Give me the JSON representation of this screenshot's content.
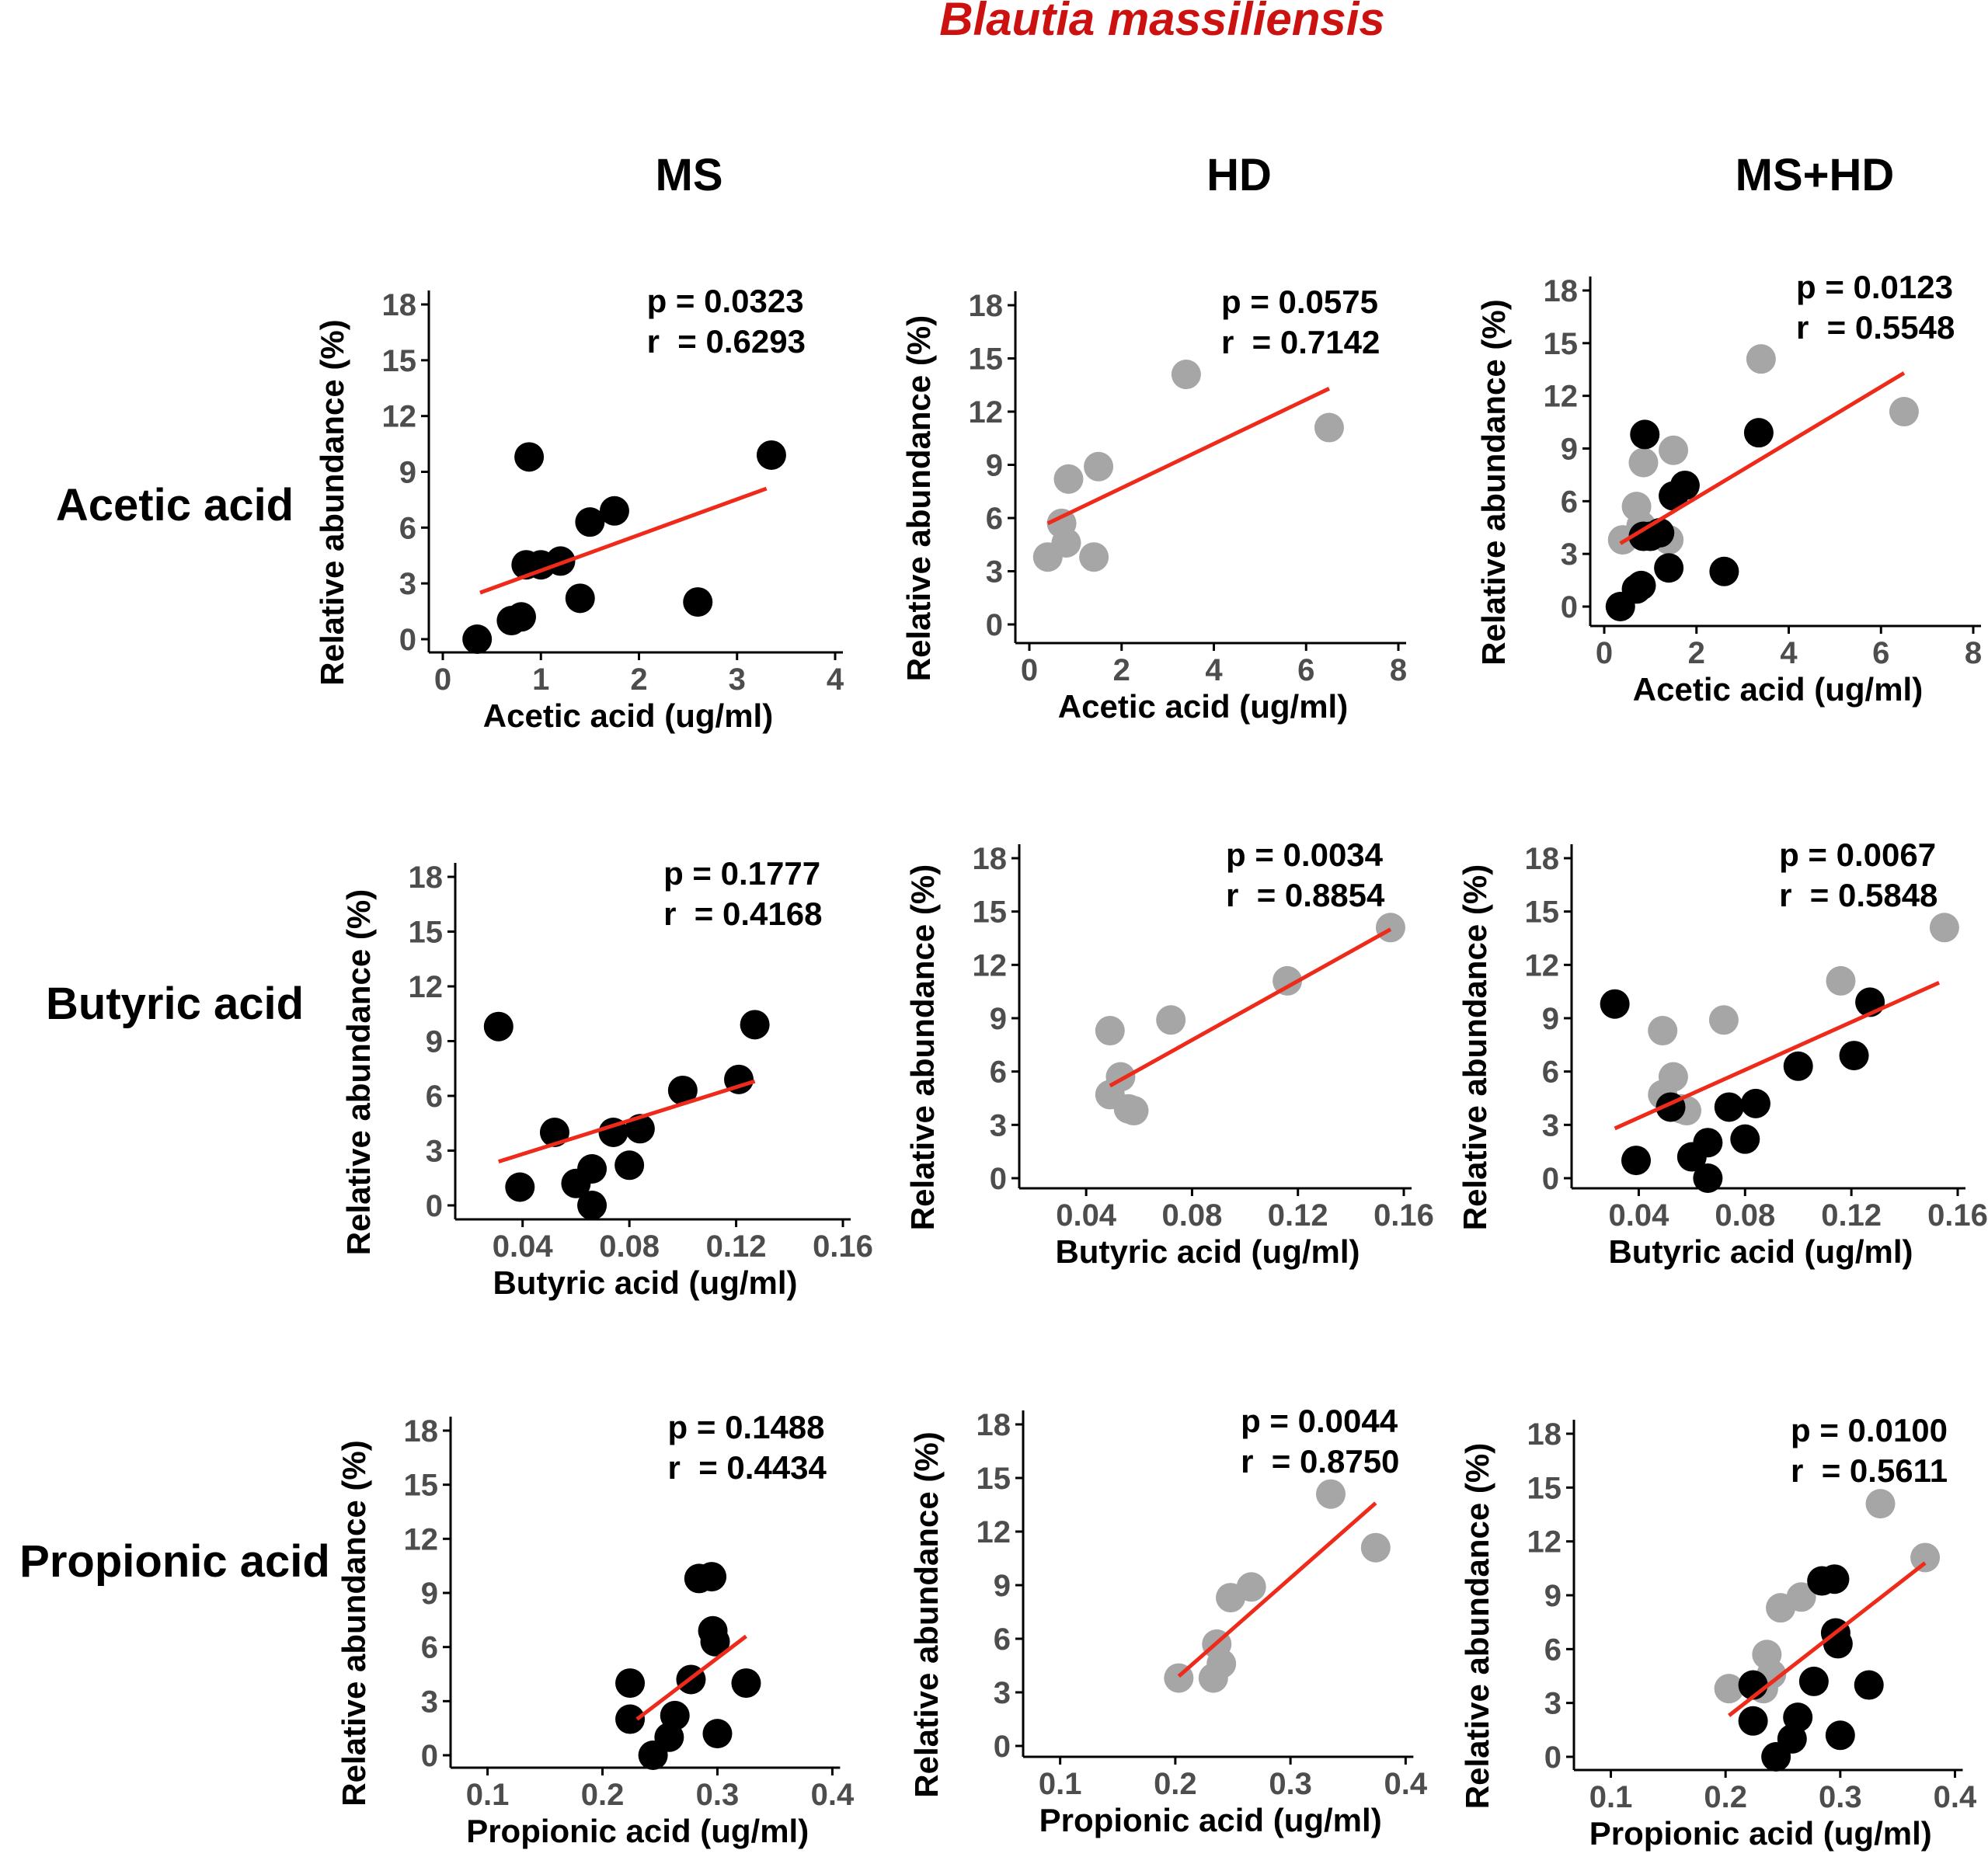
{
  "figure": {
    "title": "Blautia massiliensis",
    "column_headers": [
      "MS",
      "HD",
      "MS+HD"
    ],
    "row_labels": [
      "Acetic acid",
      "Butyric acid",
      "Propionic acid"
    ],
    "colors": {
      "title": "#cc1111",
      "ms_points": "#000000",
      "hd_points": "#a6a6a6",
      "fit_line": "#ee2a1a",
      "axis": "#000000",
      "tick_text": "#4d4d4d"
    }
  },
  "chart_data": [
    {
      "id": "acetic-ms",
      "type": "scatter",
      "xlabel": "Acetic acid (ug/ml)",
      "ylabel": "Relative abundance (%)",
      "xlim": [
        0,
        4
      ],
      "xticks": [
        0,
        1,
        2,
        3,
        4
      ],
      "xtick_labels": [
        "0",
        "1",
        "2",
        "3",
        "4"
      ],
      "ylim": [
        0,
        18
      ],
      "yticks": [
        0,
        3,
        6,
        9,
        12,
        15,
        18
      ],
      "ytick_labels": [
        "0",
        "3",
        "6",
        "9",
        "12",
        "15",
        "18"
      ],
      "p_text": "p = 0.0323",
      "r_text": "r  = 0.6293",
      "series": [
        {
          "name": "MS",
          "color": "#000000",
          "x": [
            0.35,
            0.7,
            0.8,
            0.85,
            0.88,
            1.0,
            1.2,
            1.4,
            1.5,
            1.75,
            2.6,
            3.35
          ],
          "y": [
            0.0,
            1.0,
            1.2,
            4.0,
            9.8,
            4.0,
            4.2,
            2.2,
            6.3,
            6.9,
            2.0,
            9.9
          ]
        }
      ],
      "fit": {
        "x": [
          0.38,
          3.3
        ],
        "y": [
          2.5,
          8.1
        ]
      }
    },
    {
      "id": "acetic-hd",
      "type": "scatter",
      "xlabel": "Acetic acid (ug/ml)",
      "ylabel": "Relative abundance (%)",
      "xlim": [
        0,
        8
      ],
      "xticks": [
        0,
        2,
        4,
        6,
        8
      ],
      "xtick_labels": [
        "0",
        "2",
        "4",
        "6",
        "8"
      ],
      "ylim": [
        0,
        18
      ],
      "yticks": [
        0,
        3,
        6,
        9,
        12,
        15,
        18
      ],
      "ytick_labels": [
        "0",
        "3",
        "6",
        "9",
        "12",
        "15",
        "18"
      ],
      "p_text": "p = 0.0575",
      "r_text": "r  = 0.7142",
      "series": [
        {
          "name": "HD",
          "color": "#a6a6a6",
          "x": [
            0.4,
            0.7,
            0.8,
            0.85,
            1.4,
            1.5,
            3.4,
            6.5
          ],
          "y": [
            3.8,
            5.7,
            4.6,
            8.2,
            3.8,
            8.9,
            14.1,
            11.1
          ]
        }
      ],
      "fit": {
        "x": [
          0.4,
          6.5
        ],
        "y": [
          5.7,
          13.3
        ]
      }
    },
    {
      "id": "acetic-mshd",
      "type": "scatter",
      "xlabel": "Acetic acid (ug/ml)",
      "ylabel": "Relative abundance (%)",
      "xlim": [
        0,
        8
      ],
      "xticks": [
        0,
        2,
        4,
        6,
        8
      ],
      "xtick_labels": [
        "0",
        "2",
        "4",
        "6",
        "8"
      ],
      "ylim": [
        0,
        18
      ],
      "yticks": [
        0,
        3,
        6,
        9,
        12,
        15,
        18
      ],
      "ytick_labels": [
        "0",
        "3",
        "6",
        "9",
        "12",
        "15",
        "18"
      ],
      "p_text": "p = 0.0123",
      "r_text": "r  = 0.5548",
      "series": [
        {
          "name": "HD",
          "color": "#a6a6a6",
          "x": [
            0.4,
            0.7,
            0.8,
            0.85,
            1.4,
            1.5,
            3.4,
            6.5
          ],
          "y": [
            3.8,
            5.7,
            4.6,
            8.2,
            3.8,
            8.9,
            14.1,
            11.1
          ]
        },
        {
          "name": "MS",
          "color": "#000000",
          "x": [
            0.35,
            0.7,
            0.8,
            0.85,
            0.88,
            1.0,
            1.2,
            1.4,
            1.5,
            1.75,
            2.6,
            3.35
          ],
          "y": [
            0.0,
            1.0,
            1.2,
            4.0,
            9.8,
            4.0,
            4.2,
            2.2,
            6.3,
            6.9,
            2.0,
            9.9
          ]
        }
      ],
      "fit": {
        "x": [
          0.35,
          6.5
        ],
        "y": [
          3.6,
          13.3
        ]
      }
    },
    {
      "id": "butyric-ms",
      "type": "scatter",
      "xlabel": "Butyric acid (ug/ml)",
      "ylabel": "Relative abundance (%)",
      "xlim": [
        0.02,
        0.16
      ],
      "xticks": [
        0.04,
        0.08,
        0.12,
        0.16
      ],
      "xtick_labels": [
        "0.04",
        "0.08",
        "0.12",
        "0.16"
      ],
      "ylim": [
        0,
        18
      ],
      "yticks": [
        0,
        3,
        6,
        9,
        12,
        15,
        18
      ],
      "ytick_labels": [
        "0",
        "3",
        "6",
        "9",
        "12",
        "15",
        "18"
      ],
      "p_text": "p = 0.1777",
      "r_text": "r  = 0.4168",
      "series": [
        {
          "name": "MS",
          "color": "#000000",
          "x": [
            0.031,
            0.039,
            0.052,
            0.06,
            0.066,
            0.066,
            0.074,
            0.08,
            0.084,
            0.1,
            0.121,
            0.127
          ],
          "y": [
            9.8,
            1.0,
            4.0,
            1.2,
            0.0,
            2.0,
            4.0,
            2.2,
            4.2,
            6.3,
            6.9,
            9.9
          ]
        }
      ],
      "fit": {
        "x": [
          0.031,
          0.127
        ],
        "y": [
          2.4,
          6.8
        ]
      }
    },
    {
      "id": "butyric-hd",
      "type": "scatter",
      "xlabel": "Butyric acid (ug/ml)",
      "ylabel": "Relative abundance (%)",
      "xlim": [
        0.02,
        0.16
      ],
      "xticks": [
        0.04,
        0.08,
        0.12,
        0.16
      ],
      "xtick_labels": [
        "0.04",
        "0.08",
        "0.12",
        "0.16"
      ],
      "ylim": [
        0,
        18
      ],
      "yticks": [
        0,
        3,
        6,
        9,
        12,
        15,
        18
      ],
      "ytick_labels": [
        "0",
        "3",
        "6",
        "9",
        "12",
        "15",
        "18"
      ],
      "p_text": "p = 0.0034",
      "r_text": "r  = 0.8854",
      "series": [
        {
          "name": "HD",
          "color": "#a6a6a6",
          "x": [
            0.049,
            0.049,
            0.053,
            0.056,
            0.058,
            0.072,
            0.116,
            0.155
          ],
          "y": [
            8.3,
            4.7,
            5.7,
            3.9,
            3.8,
            8.9,
            11.1,
            14.1
          ]
        }
      ],
      "fit": {
        "x": [
          0.049,
          0.155
        ],
        "y": [
          5.2,
          14.0
        ]
      }
    },
    {
      "id": "butyric-mshd",
      "type": "scatter",
      "xlabel": "Butyric acid (ug/ml)",
      "ylabel": "Relative abundance (%)",
      "xlim": [
        0.02,
        0.16
      ],
      "xticks": [
        0.04,
        0.08,
        0.12,
        0.16
      ],
      "xtick_labels": [
        "0.04",
        "0.08",
        "0.12",
        "0.16"
      ],
      "ylim": [
        0,
        18
      ],
      "yticks": [
        0,
        3,
        6,
        9,
        12,
        15,
        18
      ],
      "ytick_labels": [
        "0",
        "3",
        "6",
        "9",
        "12",
        "15",
        "18"
      ],
      "p_text": "p = 0.0067",
      "r_text": "r  = 0.5848",
      "series": [
        {
          "name": "HD",
          "color": "#a6a6a6",
          "x": [
            0.049,
            0.049,
            0.053,
            0.056,
            0.058,
            0.072,
            0.116,
            0.155
          ],
          "y": [
            8.3,
            4.7,
            5.7,
            3.9,
            3.8,
            8.9,
            11.1,
            14.1
          ]
        },
        {
          "name": "MS",
          "color": "#000000",
          "x": [
            0.031,
            0.039,
            0.052,
            0.06,
            0.066,
            0.066,
            0.074,
            0.08,
            0.084,
            0.1,
            0.121,
            0.127
          ],
          "y": [
            9.8,
            1.0,
            4.0,
            1.2,
            0.0,
            2.0,
            4.0,
            2.2,
            4.2,
            6.3,
            6.9,
            9.9
          ]
        }
      ],
      "fit": {
        "x": [
          0.031,
          0.153
        ],
        "y": [
          2.8,
          11.0
        ]
      }
    },
    {
      "id": "propionic-ms",
      "type": "scatter",
      "xlabel": "Propionic acid (ug/ml)",
      "ylabel": "Relative abundance (%)",
      "xlim": [
        0.08,
        0.42
      ],
      "xticks": [
        0.1,
        0.2,
        0.3,
        0.4
      ],
      "xtick_labels": [
        "0.1",
        "0.2",
        "0.3",
        "0.4"
      ],
      "ylim": [
        0,
        18
      ],
      "yticks": [
        0,
        3,
        6,
        9,
        12,
        15,
        18
      ],
      "ytick_labels": [
        "0",
        "3",
        "6",
        "9",
        "12",
        "15",
        "18"
      ],
      "p_text": "p = 0.1488",
      "r_text": "r  = 0.4434",
      "series": [
        {
          "name": "MS",
          "color": "#000000",
          "x": [
            0.224,
            0.224,
            0.244,
            0.258,
            0.263,
            0.277,
            0.284,
            0.295,
            0.296,
            0.298,
            0.3,
            0.325
          ],
          "y": [
            4.0,
            2.0,
            0.0,
            1.0,
            2.2,
            4.2,
            9.8,
            9.9,
            6.9,
            6.3,
            1.2,
            4.0
          ]
        }
      ],
      "fit": {
        "x": [
          0.23,
          0.325
        ],
        "y": [
          2.0,
          6.6
        ]
      }
    },
    {
      "id": "propionic-hd",
      "type": "scatter",
      "xlabel": "Propionic acid (ug/ml)",
      "ylabel": "Relative abundance (%)",
      "xlim": [
        0.08,
        0.42
      ],
      "xticks": [
        0.1,
        0.2,
        0.3,
        0.4
      ],
      "xtick_labels": [
        "0.1",
        "0.2",
        "0.3",
        "0.4"
      ],
      "ylim": [
        0,
        18
      ],
      "yticks": [
        0,
        3,
        6,
        9,
        12,
        15,
        18
      ],
      "ytick_labels": [
        "0",
        "3",
        "6",
        "9",
        "12",
        "15",
        "18"
      ],
      "p_text": "p = 0.0044",
      "r_text": "r  = 0.8750",
      "series": [
        {
          "name": "HD",
          "color": "#a6a6a6",
          "x": [
            0.203,
            0.233,
            0.236,
            0.24,
            0.248,
            0.266,
            0.335,
            0.374
          ],
          "y": [
            3.8,
            3.8,
            5.7,
            4.6,
            8.3,
            8.9,
            14.1,
            11.1
          ]
        }
      ],
      "fit": {
        "x": [
          0.203,
          0.374
        ],
        "y": [
          3.9,
          13.6
        ]
      }
    },
    {
      "id": "propionic-mshd",
      "type": "scatter",
      "xlabel": "Propionic acid (ug/ml)",
      "ylabel": "Relative abundance (%)",
      "xlim": [
        0.08,
        0.42
      ],
      "xticks": [
        0.1,
        0.2,
        0.3,
        0.4
      ],
      "xtick_labels": [
        "0.1",
        "0.2",
        "0.3",
        "0.4"
      ],
      "ylim": [
        0,
        18
      ],
      "yticks": [
        0,
        3,
        6,
        9,
        12,
        15,
        18
      ],
      "ytick_labels": [
        "0",
        "3",
        "6",
        "9",
        "12",
        "15",
        "18"
      ],
      "p_text": "p = 0.0100",
      "r_text": "r  = 0.5611",
      "series": [
        {
          "name": "HD",
          "color": "#a6a6a6",
          "x": [
            0.203,
            0.233,
            0.236,
            0.24,
            0.248,
            0.266,
            0.335,
            0.374
          ],
          "y": [
            3.8,
            3.8,
            5.7,
            4.6,
            8.3,
            8.9,
            14.1,
            11.1
          ]
        },
        {
          "name": "MS",
          "color": "#000000",
          "x": [
            0.224,
            0.224,
            0.244,
            0.258,
            0.263,
            0.277,
            0.284,
            0.295,
            0.296,
            0.298,
            0.3,
            0.325
          ],
          "y": [
            4.0,
            2.0,
            0.0,
            1.0,
            2.2,
            4.2,
            9.8,
            9.9,
            6.9,
            6.3,
            1.2,
            4.0
          ]
        }
      ],
      "fit": {
        "x": [
          0.203,
          0.374
        ],
        "y": [
          2.3,
          10.8
        ]
      }
    }
  ]
}
